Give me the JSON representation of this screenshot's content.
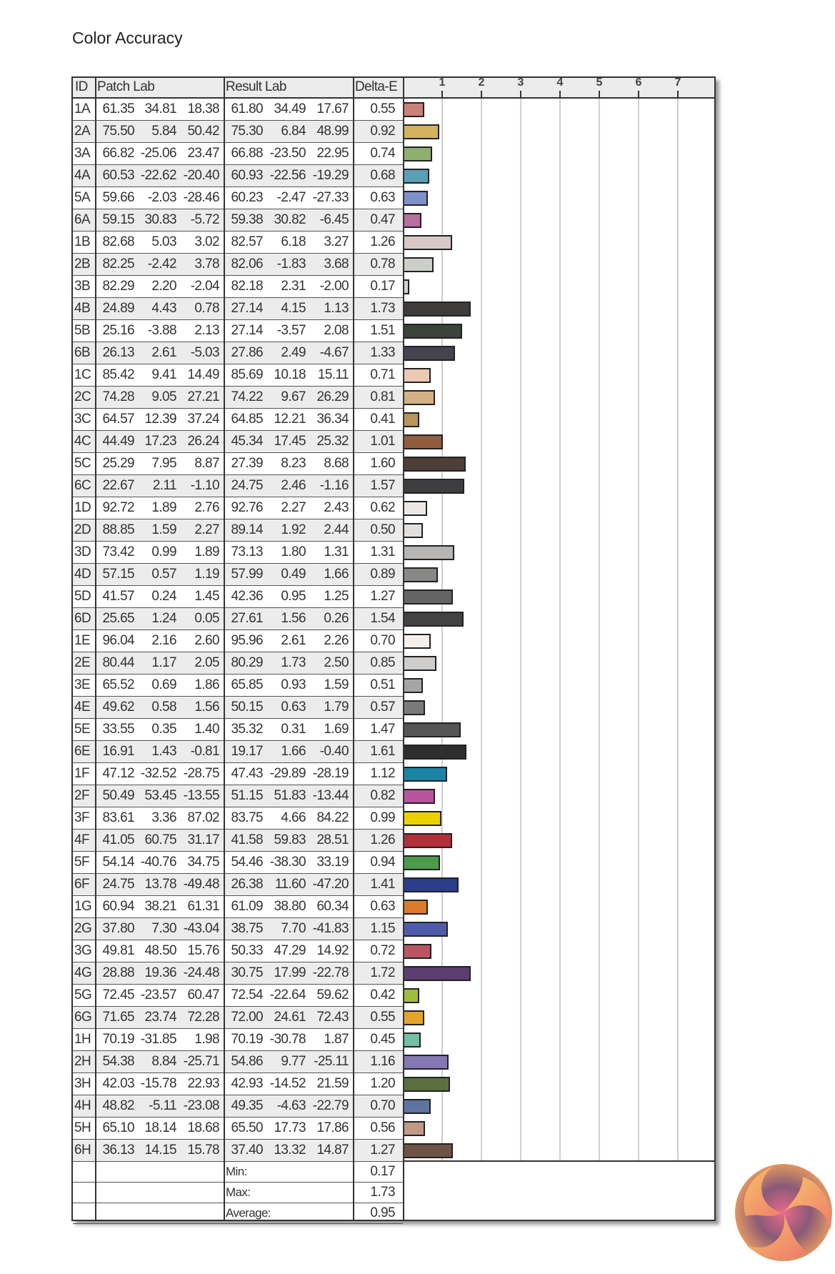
{
  "title": "Color Accuracy",
  "table": {
    "headers": {
      "id": "ID",
      "patch": "Patch Lab",
      "result": "Result Lab",
      "delta": "Delta-E"
    },
    "summary": [
      {
        "label": "Min:",
        "value": "0.17"
      },
      {
        "label": "Max:",
        "value": "1.73"
      },
      {
        "label": "Average:",
        "value": "0.95"
      }
    ]
  },
  "chart_data": {
    "type": "bar",
    "orientation": "horizontal",
    "xlim": [
      0,
      8
    ],
    "ticks": [
      "1",
      "2",
      "3",
      "4",
      "5",
      "6",
      "7"
    ],
    "grid": true,
    "rows": [
      {
        "id": "1A",
        "patch": [
          "61.35",
          "34.81",
          "18.38"
        ],
        "result": [
          "61.80",
          "34.49",
          "17.67"
        ],
        "delta": 0.55,
        "color": "#c9817a"
      },
      {
        "id": "2A",
        "patch": [
          "75.50",
          "5.84",
          "50.42"
        ],
        "result": [
          "75.30",
          "6.84",
          "48.99"
        ],
        "delta": 0.92,
        "color": "#d4b35e"
      },
      {
        "id": "3A",
        "patch": [
          "66.82",
          "-25.06",
          "23.47"
        ],
        "result": [
          "66.88",
          "-23.50",
          "22.95"
        ],
        "delta": 0.74,
        "color": "#8db070"
      },
      {
        "id": "4A",
        "patch": [
          "60.53",
          "-22.62",
          "-20.40"
        ],
        "result": [
          "60.93",
          "-22.56",
          "-19.29"
        ],
        "delta": 0.68,
        "color": "#5a9fb5"
      },
      {
        "id": "5A",
        "patch": [
          "59.66",
          "-2.03",
          "-28.46"
        ],
        "result": [
          "60.23",
          "-2.47",
          "-27.33"
        ],
        "delta": 0.63,
        "color": "#7f8fc8"
      },
      {
        "id": "6A",
        "patch": [
          "59.15",
          "30.83",
          "-5.72"
        ],
        "result": [
          "59.38",
          "30.82",
          "-6.45"
        ],
        "delta": 0.47,
        "color": "#b76f9e"
      },
      {
        "id": "1B",
        "patch": [
          "82.68",
          "5.03",
          "3.02"
        ],
        "result": [
          "82.57",
          "6.18",
          "3.27"
        ],
        "delta": 1.26,
        "color": "#d8c8c8"
      },
      {
        "id": "2B",
        "patch": [
          "82.25",
          "-2.42",
          "3.78"
        ],
        "result": [
          "82.06",
          "-1.83",
          "3.68"
        ],
        "delta": 0.78,
        "color": "#cbcfc8"
      },
      {
        "id": "3B",
        "patch": [
          "82.29",
          "2.20",
          "-2.04"
        ],
        "result": [
          "82.18",
          "2.31",
          "-2.00"
        ],
        "delta": 0.17,
        "color": "#d2d2d8"
      },
      {
        "id": "4B",
        "patch": [
          "24.89",
          "4.43",
          "0.78"
        ],
        "result": [
          "27.14",
          "4.15",
          "1.13"
        ],
        "delta": 1.73,
        "color": "#3f3b3b"
      },
      {
        "id": "5B",
        "patch": [
          "25.16",
          "-3.88",
          "2.13"
        ],
        "result": [
          "27.14",
          "-3.57",
          "2.08"
        ],
        "delta": 1.51,
        "color": "#3a423a"
      },
      {
        "id": "6B",
        "patch": [
          "26.13",
          "2.61",
          "-5.03"
        ],
        "result": [
          "27.86",
          "2.49",
          "-4.67"
        ],
        "delta": 1.33,
        "color": "#44434f"
      },
      {
        "id": "1C",
        "patch": [
          "85.42",
          "9.41",
          "14.49"
        ],
        "result": [
          "85.69",
          "10.18",
          "15.11"
        ],
        "delta": 0.71,
        "color": "#ecc9b3"
      },
      {
        "id": "2C",
        "patch": [
          "74.28",
          "9.05",
          "27.21"
        ],
        "result": [
          "74.22",
          "9.67",
          "26.29"
        ],
        "delta": 0.81,
        "color": "#d3b184"
      },
      {
        "id": "3C",
        "patch": [
          "64.57",
          "12.39",
          "37.24"
        ],
        "result": [
          "64.85",
          "12.21",
          "36.34"
        ],
        "delta": 0.41,
        "color": "#b9955a"
      },
      {
        "id": "4C",
        "patch": [
          "44.49",
          "17.23",
          "26.24"
        ],
        "result": [
          "45.34",
          "17.45",
          "25.32"
        ],
        "delta": 1.01,
        "color": "#8e5e3e"
      },
      {
        "id": "5C",
        "patch": [
          "25.29",
          "7.95",
          "8.87"
        ],
        "result": [
          "27.39",
          "8.23",
          "8.68"
        ],
        "delta": 1.6,
        "color": "#4d3f37"
      },
      {
        "id": "6C",
        "patch": [
          "22.67",
          "2.11",
          "-1.10"
        ],
        "result": [
          "24.75",
          "2.46",
          "-1.16"
        ],
        "delta": 1.57,
        "color": "#3e3d40"
      },
      {
        "id": "1D",
        "patch": [
          "92.72",
          "1.89",
          "2.76"
        ],
        "result": [
          "92.76",
          "2.27",
          "2.43"
        ],
        "delta": 0.62,
        "color": "#ebe8e6"
      },
      {
        "id": "2D",
        "patch": [
          "88.85",
          "1.59",
          "2.27"
        ],
        "result": [
          "89.14",
          "1.92",
          "2.44"
        ],
        "delta": 0.5,
        "color": "#e2dfdc"
      },
      {
        "id": "3D",
        "patch": [
          "73.42",
          "0.99",
          "1.89"
        ],
        "result": [
          "73.13",
          "1.80",
          "1.31"
        ],
        "delta": 1.31,
        "color": "#b7b5b4"
      },
      {
        "id": "4D",
        "patch": [
          "57.15",
          "0.57",
          "1.19"
        ],
        "result": [
          "57.99",
          "0.49",
          "1.66"
        ],
        "delta": 0.89,
        "color": "#888887"
      },
      {
        "id": "5D",
        "patch": [
          "41.57",
          "0.24",
          "1.45"
        ],
        "result": [
          "42.36",
          "0.95",
          "1.25"
        ],
        "delta": 1.27,
        "color": "#646464"
      },
      {
        "id": "6D",
        "patch": [
          "25.65",
          "1.24",
          "0.05"
        ],
        "result": [
          "27.61",
          "1.56",
          "0.26"
        ],
        "delta": 1.54,
        "color": "#424242"
      },
      {
        "id": "1E",
        "patch": [
          "96.04",
          "2.16",
          "2.60"
        ],
        "result": [
          "95.96",
          "2.61",
          "2.26"
        ],
        "delta": 0.7,
        "color": "#f5f0ec"
      },
      {
        "id": "2E",
        "patch": [
          "80.44",
          "1.17",
          "2.05"
        ],
        "result": [
          "80.29",
          "1.73",
          "2.50"
        ],
        "delta": 0.85,
        "color": "#cfcdcb"
      },
      {
        "id": "3E",
        "patch": [
          "65.52",
          "0.69",
          "1.86"
        ],
        "result": [
          "65.85",
          "0.93",
          "1.59"
        ],
        "delta": 0.51,
        "color": "#a6a5a3"
      },
      {
        "id": "4E",
        "patch": [
          "49.62",
          "0.58",
          "1.56"
        ],
        "result": [
          "50.15",
          "0.63",
          "1.79"
        ],
        "delta": 0.57,
        "color": "#7b7a79"
      },
      {
        "id": "5E",
        "patch": [
          "33.55",
          "0.35",
          "1.40"
        ],
        "result": [
          "35.32",
          "0.31",
          "1.69"
        ],
        "delta": 1.47,
        "color": "#565656"
      },
      {
        "id": "6E",
        "patch": [
          "16.91",
          "1.43",
          "-0.81"
        ],
        "result": [
          "19.17",
          "1.66",
          "-0.40"
        ],
        "delta": 1.61,
        "color": "#2e2d2f"
      },
      {
        "id": "1F",
        "patch": [
          "47.12",
          "-32.52",
          "-28.75"
        ],
        "result": [
          "47.43",
          "-29.89",
          "-28.19"
        ],
        "delta": 1.12,
        "color": "#1a84a5"
      },
      {
        "id": "2F",
        "patch": [
          "50.49",
          "53.45",
          "-13.55"
        ],
        "result": [
          "51.15",
          "51.83",
          "-13.44"
        ],
        "delta": 0.82,
        "color": "#b8539e"
      },
      {
        "id": "3F",
        "patch": [
          "83.61",
          "3.36",
          "87.02"
        ],
        "result": [
          "83.75",
          "4.66",
          "84.22"
        ],
        "delta": 0.99,
        "color": "#ecd100"
      },
      {
        "id": "4F",
        "patch": [
          "41.05",
          "60.75",
          "31.17"
        ],
        "result": [
          "41.58",
          "59.83",
          "28.51"
        ],
        "delta": 1.26,
        "color": "#b2303a"
      },
      {
        "id": "5F",
        "patch": [
          "54.14",
          "-40.76",
          "34.75"
        ],
        "result": [
          "54.46",
          "-38.30",
          "33.19"
        ],
        "delta": 0.94,
        "color": "#4c9a4b"
      },
      {
        "id": "6F",
        "patch": [
          "24.75",
          "13.78",
          "-49.48"
        ],
        "result": [
          "26.38",
          "11.60",
          "-47.20"
        ],
        "delta": 1.41,
        "color": "#2c3d8c"
      },
      {
        "id": "1G",
        "patch": [
          "60.94",
          "38.21",
          "61.31"
        ],
        "result": [
          "61.09",
          "38.80",
          "60.34"
        ],
        "delta": 0.63,
        "color": "#db7b2b"
      },
      {
        "id": "2G",
        "patch": [
          "37.80",
          "7.30",
          "-43.04"
        ],
        "result": [
          "38.75",
          "7.70",
          "-41.83"
        ],
        "delta": 1.15,
        "color": "#4e5ca8"
      },
      {
        "id": "3G",
        "patch": [
          "49.81",
          "48.50",
          "15.76"
        ],
        "result": [
          "50.33",
          "47.29",
          "14.92"
        ],
        "delta": 0.72,
        "color": "#bb5563"
      },
      {
        "id": "4G",
        "patch": [
          "28.88",
          "19.36",
          "-24.48"
        ],
        "result": [
          "30.75",
          "17.99",
          "-22.78"
        ],
        "delta": 1.72,
        "color": "#5b3e6d"
      },
      {
        "id": "5G",
        "patch": [
          "72.45",
          "-23.57",
          "60.47"
        ],
        "result": [
          "72.54",
          "-22.64",
          "59.62"
        ],
        "delta": 0.42,
        "color": "#a0bd3b"
      },
      {
        "id": "6G",
        "patch": [
          "71.65",
          "23.74",
          "72.28"
        ],
        "result": [
          "72.00",
          "24.61",
          "72.43"
        ],
        "delta": 0.55,
        "color": "#e4a42a"
      },
      {
        "id": "1H",
        "patch": [
          "70.19",
          "-31.85",
          "1.98"
        ],
        "result": [
          "70.19",
          "-30.78",
          "1.87"
        ],
        "delta": 0.45,
        "color": "#72bea6"
      },
      {
        "id": "2H",
        "patch": [
          "54.38",
          "8.84",
          "-25.71"
        ],
        "result": [
          "54.86",
          "9.77",
          "-25.11"
        ],
        "delta": 1.16,
        "color": "#8577b3"
      },
      {
        "id": "3H",
        "patch": [
          "42.03",
          "-15.78",
          "22.93"
        ],
        "result": [
          "42.93",
          "-14.52",
          "21.59"
        ],
        "delta": 1.2,
        "color": "#5a703f"
      },
      {
        "id": "4H",
        "patch": [
          "48.82",
          "-5.11",
          "-23.08"
        ],
        "result": [
          "49.35",
          "-4.63",
          "-22.79"
        ],
        "delta": 0.7,
        "color": "#5b75a0"
      },
      {
        "id": "5H",
        "patch": [
          "65.10",
          "18.14",
          "18.68"
        ],
        "result": [
          "65.50",
          "17.73",
          "17.86"
        ],
        "delta": 0.56,
        "color": "#c09a86"
      },
      {
        "id": "6H",
        "patch": [
          "36.13",
          "14.15",
          "15.78"
        ],
        "result": [
          "37.40",
          "13.32",
          "14.87"
        ],
        "delta": 1.27,
        "color": "#6e5446"
      }
    ]
  }
}
